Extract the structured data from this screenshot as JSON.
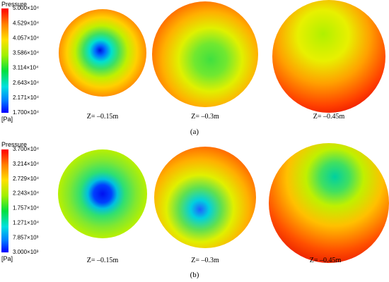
{
  "panels": [
    {
      "legend": {
        "title": "Pressure",
        "labels": [
          "5.000×10⁴",
          "4.529×10⁴",
          "4.057×10⁴",
          "3.586×10⁴",
          "3.114×10⁴",
          "2.643×10⁴",
          "2.171×10⁴",
          "1.700×10⁴"
        ],
        "unit": "[Pa]"
      },
      "plots": [
        {
          "label": "Z= –0.15m"
        },
        {
          "label": "Z= –0.3m"
        },
        {
          "label": "Z= –0.45m"
        }
      ],
      "caption": "(a)"
    },
    {
      "legend": {
        "title": "Pressure",
        "labels": [
          "3.700×10⁴",
          "3.214×10⁴",
          "2.729×10⁴",
          "2.243×10⁴",
          "1.757×10⁴",
          "1.271×10⁴",
          "7.857×10³",
          "3.000×10³"
        ],
        "unit": "[Pa]"
      },
      "plots": [
        {
          "label": "Z= –0.15m"
        },
        {
          "label": "Z= –0.3m"
        },
        {
          "label": "Z= –0.45m"
        }
      ],
      "caption": "(b)"
    }
  ]
}
